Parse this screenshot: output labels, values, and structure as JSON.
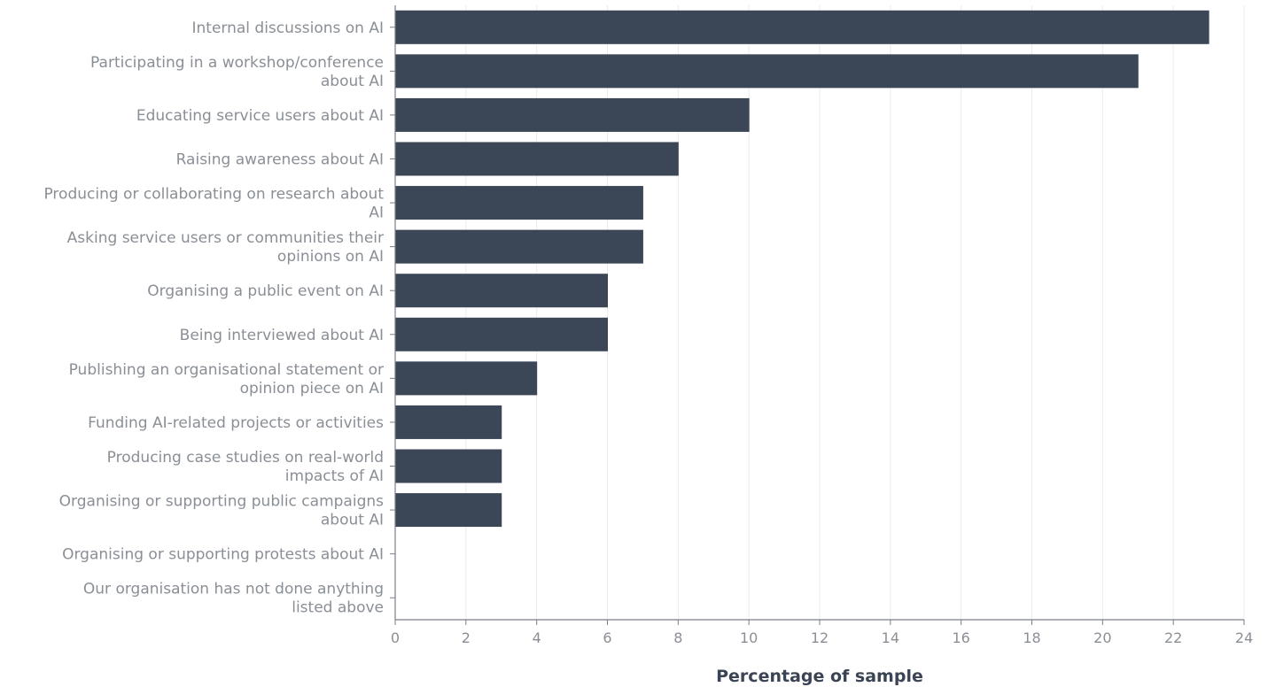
{
  "chart_data": {
    "type": "bar",
    "orientation": "horizontal",
    "categories": [
      "Internal discussions on AI",
      "Participating in a workshop/conference about AI",
      "Educating service users about AI",
      "Raising awareness about AI",
      "Producing or collaborating on research about AI",
      "Asking service users or communities their opinions on AI",
      "Organising a public event on AI",
      "Being interviewed about AI",
      "Publishing an organisational statement or opinion piece on AI",
      "Funding AI-related projects or activities",
      "Producing case studies on real-world impacts of AI",
      "Organising or supporting public campaigns about AI",
      "Organising or supporting protests about AI",
      "Our organisation has not done anything listed above"
    ],
    "category_lines": [
      [
        "Internal discussions on AI"
      ],
      [
        "Participating in a workshop/conference",
        "about AI"
      ],
      [
        "Educating service users about AI"
      ],
      [
        "Raising awareness about AI"
      ],
      [
        "Producing or collaborating on research about",
        "AI"
      ],
      [
        "Asking service users or communities their",
        "opinions on AI"
      ],
      [
        "Organising a public event on AI"
      ],
      [
        "Being interviewed about AI"
      ],
      [
        "Publishing an organisational statement or",
        "opinion piece on AI"
      ],
      [
        "Funding AI-related projects or activities"
      ],
      [
        "Producing case studies on real-world",
        "impacts of AI"
      ],
      [
        "Organising or supporting public campaigns",
        "about AI"
      ],
      [
        "Organising or supporting protests about AI"
      ],
      [
        "Our organisation has not done anything",
        "listed above"
      ]
    ],
    "values": [
      23,
      21,
      10,
      8,
      7,
      7,
      6,
      6,
      4,
      3,
      3,
      3,
      0,
      0
    ],
    "xlabel": "Percentage of sample",
    "ylabel": "",
    "xlim": [
      0,
      24
    ],
    "x_ticks": [
      0,
      2,
      4,
      6,
      8,
      10,
      12,
      14,
      16,
      18,
      20,
      22,
      24
    ],
    "grid": true,
    "bar_color": "#3b4657",
    "grid_color": "#ebebeb",
    "axis_color": "#7a7f86",
    "label_color": "#8a8f96"
  }
}
